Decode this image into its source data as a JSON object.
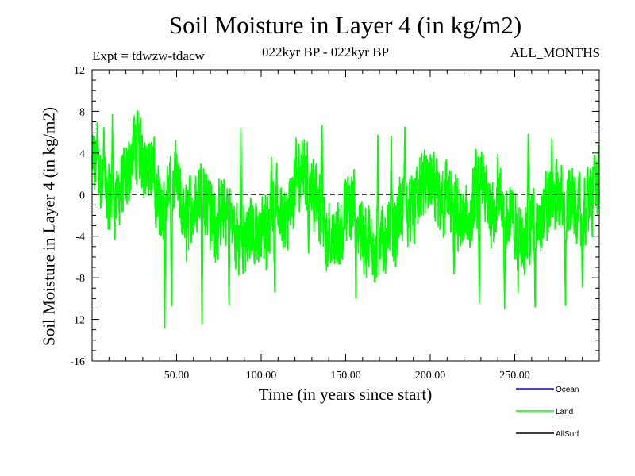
{
  "chart_data": {
    "type": "line",
    "title": "Soil Moisture in Layer 4 (in kg/m2)",
    "subtitle_left": "Expt = tdwzw-tdacw",
    "subtitle_center": "022kyr BP - 022kyr BP",
    "subtitle_right": "ALL_MONTHS",
    "xlabel": "Time (in years since start)",
    "ylabel": "Soil Moisture in Layer 4 (in kg/m2)",
    "xlim": [
      0,
      300
    ],
    "ylim": [
      -16,
      12
    ],
    "x_ticks": [
      50,
      100,
      150,
      200,
      250
    ],
    "x_tick_labels": [
      "50.00",
      "100.00",
      "150.00",
      "200.00",
      "250.00"
    ],
    "y_ticks": [
      -16,
      -12,
      -8,
      -4,
      0,
      4,
      8,
      12
    ],
    "y_tick_labels": [
      "-16",
      "-12",
      "-8",
      "-4",
      "0",
      "4",
      "8",
      "12"
    ],
    "zero_line": {
      "y": 0,
      "style": "dashed",
      "color": "#000000"
    },
    "legend": {
      "placement": "bottom-right",
      "entries": [
        {
          "label": "Ocean",
          "color": "#0000ff"
        },
        {
          "label": "Land",
          "color": "#00ff00"
        },
        {
          "label": "AllSurf",
          "color": "#000000"
        }
      ]
    },
    "series": [
      {
        "name": "Land",
        "color": "#00ff00",
        "sampling": "monthly",
        "n_points": 3600,
        "x_start": 0,
        "x_end": 300,
        "envelope_y": [
          3,
          2,
          -1,
          0,
          1,
          5,
          4,
          2,
          -1,
          0,
          1,
          -3,
          -1,
          1,
          -2,
          -3,
          -1,
          -4,
          -5,
          -3,
          -4,
          -2,
          -1,
          -3,
          1,
          3,
          1,
          -2,
          -4,
          -4,
          -2,
          -1,
          -4,
          -5,
          -5,
          -4,
          -3,
          -1,
          -2,
          1,
          1,
          -1,
          0,
          -2,
          -3,
          -2,
          1,
          -1,
          -1,
          -2,
          -3,
          -4,
          -3,
          -2,
          -1,
          0,
          -1,
          -1,
          -2,
          0,
          1
        ],
        "amplitude": 2.6,
        "peaks": [
          {
            "x": 3,
            "y": 7.0
          },
          {
            "x": 7,
            "y": 6.5
          },
          {
            "x": 12,
            "y": 7.8
          },
          {
            "x": 27,
            "y": 8.0
          },
          {
            "x": 33,
            "y": 4.5
          },
          {
            "x": 43,
            "y": -13.1
          },
          {
            "x": 47,
            "y": -11.0
          },
          {
            "x": 65,
            "y": -12.8
          },
          {
            "x": 69,
            "y": 1.5
          },
          {
            "x": 81,
            "y": -11.0
          },
          {
            "x": 88,
            "y": 7.0
          },
          {
            "x": 96,
            "y": -6.5
          },
          {
            "x": 106,
            "y": 4.0
          },
          {
            "x": 108,
            "y": -10.0
          },
          {
            "x": 128,
            "y": -6.0
          },
          {
            "x": 136,
            "y": 7.5
          },
          {
            "x": 141,
            "y": -7.0
          },
          {
            "x": 156,
            "y": -10.8
          },
          {
            "x": 169,
            "y": 6.5
          },
          {
            "x": 177,
            "y": 6.0
          },
          {
            "x": 185,
            "y": 7.0
          },
          {
            "x": 189,
            "y": 2.0
          },
          {
            "x": 214,
            "y": -8.0
          },
          {
            "x": 227,
            "y": 4.5
          },
          {
            "x": 229,
            "y": -10.8
          },
          {
            "x": 240,
            "y": 4.0
          },
          {
            "x": 244,
            "y": -11.2
          },
          {
            "x": 252,
            "y": -9.5
          },
          {
            "x": 258,
            "y": 6.0
          },
          {
            "x": 262,
            "y": -11.0
          },
          {
            "x": 272,
            "y": 5.5
          },
          {
            "x": 280,
            "y": -10.8
          },
          {
            "x": 290,
            "y": -9.0
          },
          {
            "x": 297,
            "y": 3.8
          }
        ]
      }
    ]
  }
}
